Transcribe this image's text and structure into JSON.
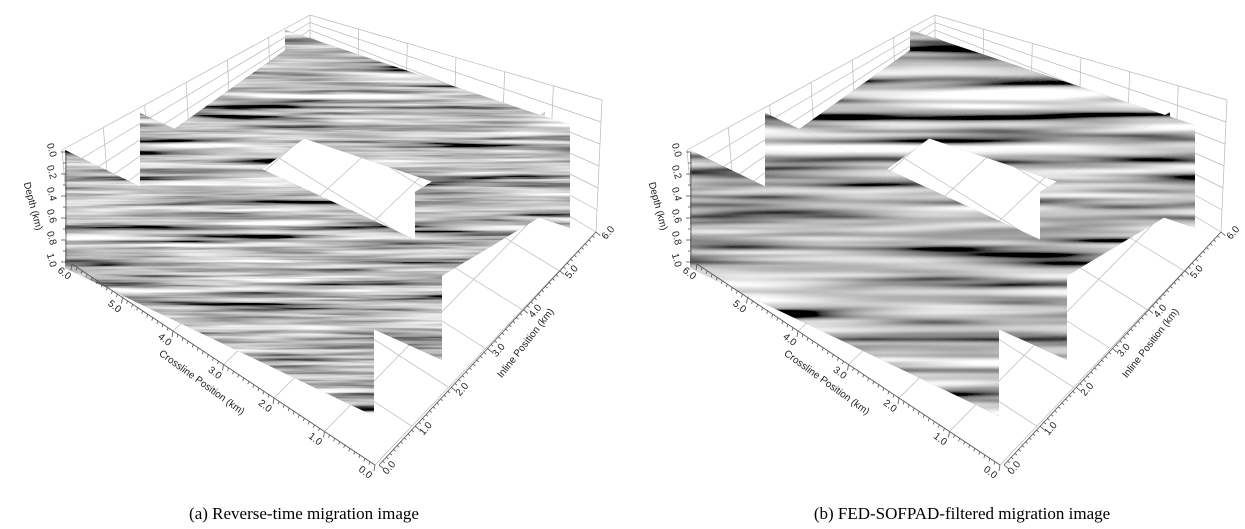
{
  "panels": [
    {
      "caption": "(a) Reverse-time migration image",
      "depth_label": "Depth (km)",
      "depth_ticks": [
        "0.0",
        "0.2",
        "0.4",
        "0.6",
        "0.8",
        "1.0"
      ],
      "crossline_label": "Crossline Position (km)",
      "crossline_ticks": [
        "0.0",
        "1.0",
        "2.0",
        "3.0",
        "4.0",
        "5.0",
        "6.0"
      ],
      "inline_label": "Inline Position (km)",
      "inline_ticks": [
        "0.0",
        "1.0",
        "2.0",
        "3.0",
        "4.0",
        "5.0",
        "6.0"
      ]
    },
    {
      "caption": "(b) FED-SOFPAD-filtered migration image",
      "depth_label": "Depth (km)",
      "depth_ticks": [
        "0.0",
        "0.2",
        "0.4",
        "0.6",
        "0.8",
        "1.0"
      ],
      "crossline_label": "Crossline Position (km)",
      "crossline_ticks": [
        "0.0",
        "1.0",
        "2.0",
        "3.0",
        "4.0",
        "5.0",
        "6.0"
      ],
      "inline_label": "Inline Position (km)",
      "inline_ticks": [
        "0.0",
        "1.0",
        "2.0",
        "3.0",
        "4.0",
        "5.0",
        "6.0"
      ]
    }
  ]
}
